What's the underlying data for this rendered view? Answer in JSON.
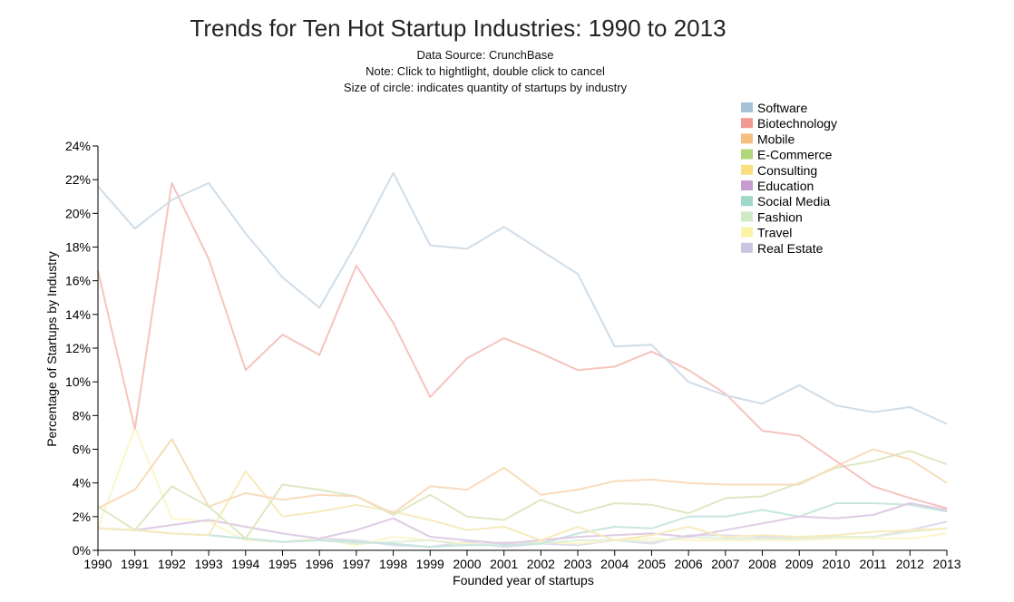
{
  "title": "Trends for Ten Hot Startup Industries: 1990 to 2013",
  "subtitles": {
    "source": "Data Source: CrunchBase",
    "note": "Note: Click to hightlight, double click to cancel",
    "size": "Size of circle: indicates quantity of startups by industry"
  },
  "chart_data": {
    "type": "line",
    "title": "Trends for Ten Hot Startup Industries: 1990 to 2013",
    "xlabel": "Founded year of startups",
    "ylabel": "Percentage of Startups by Industry",
    "ylim": [
      0,
      24
    ],
    "yticks": [
      0,
      2,
      4,
      6,
      8,
      10,
      12,
      14,
      16,
      18,
      20,
      22,
      24
    ],
    "ytick_suffix": "%",
    "grid": false,
    "legend_position": "top-right",
    "x": [
      1990,
      1991,
      1992,
      1993,
      1994,
      1995,
      1996,
      1997,
      1998,
      1999,
      2000,
      2001,
      2002,
      2003,
      2004,
      2005,
      2006,
      2007,
      2008,
      2009,
      2010,
      2011,
      2012,
      2013
    ],
    "series": [
      {
        "name": "Software",
        "color": "#a6c2d8",
        "line_color": "#d0dde8",
        "values": [
          21.6,
          19.1,
          20.8,
          21.8,
          18.8,
          16.2,
          14.4,
          18.2,
          22.4,
          18.1,
          17.9,
          19.2,
          17.8,
          16.4,
          12.1,
          12.2,
          10.0,
          9.2,
          8.7,
          9.8,
          8.6,
          8.2,
          8.5,
          7.5
        ]
      },
      {
        "name": "Biotechnology",
        "color": "#f29a91",
        "line_color": "#f5c4be",
        "values": [
          16.6,
          7.2,
          21.8,
          17.3,
          10.7,
          12.8,
          11.6,
          16.9,
          13.5,
          9.1,
          11.4,
          12.6,
          11.7,
          10.7,
          10.9,
          11.8,
          10.7,
          9.3,
          7.1,
          6.8,
          5.3,
          3.8,
          3.1,
          2.5
        ]
      },
      {
        "name": "Mobile",
        "color": "#f6bf7f",
        "line_color": "#f8dcbc",
        "values": [
          2.5,
          3.6,
          6.6,
          2.6,
          3.4,
          3.0,
          3.3,
          3.2,
          2.2,
          3.8,
          3.6,
          4.9,
          3.3,
          3.6,
          4.1,
          4.2,
          4.0,
          3.9,
          3.9,
          3.9,
          5.0,
          6.0,
          5.4,
          4.0
        ]
      },
      {
        "name": "E-Commerce",
        "color": "#b2d67a",
        "line_color": "#dde9c3",
        "values": [
          2.6,
          1.2,
          3.8,
          2.6,
          0.7,
          3.9,
          3.6,
          3.2,
          2.1,
          3.3,
          2.0,
          1.8,
          3.0,
          2.2,
          2.8,
          2.7,
          2.2,
          3.1,
          3.2,
          4.0,
          4.9,
          5.3,
          5.9,
          5.1
        ]
      },
      {
        "name": "Consulting",
        "color": "#f9df80",
        "line_color": "#f7ebbd",
        "values": [
          1.3,
          1.2,
          1.0,
          0.9,
          4.7,
          2.0,
          2.3,
          2.7,
          2.3,
          1.8,
          1.2,
          1.4,
          0.6,
          1.4,
          0.6,
          0.9,
          1.4,
          0.8,
          0.9,
          0.8,
          0.9,
          1.1,
          1.2,
          1.3
        ]
      },
      {
        "name": "Education",
        "color": "#c59dd2",
        "line_color": "#dfcbe6",
        "values": [
          1.3,
          1.2,
          1.5,
          1.8,
          1.4,
          1.0,
          0.7,
          1.2,
          1.9,
          0.8,
          0.6,
          0.4,
          0.6,
          0.8,
          0.9,
          1.0,
          0.8,
          1.2,
          1.6,
          2.0,
          1.9,
          2.1,
          2.8,
          2.4
        ]
      },
      {
        "name": "Social Media",
        "color": "#9fd8c8",
        "line_color": "#c8e6df",
        "values": [
          1.3,
          1.2,
          1.0,
          0.9,
          0.7,
          0.5,
          0.6,
          0.5,
          0.4,
          0.2,
          0.3,
          0.3,
          0.4,
          1.0,
          1.4,
          1.3,
          2.0,
          2.0,
          2.4,
          2.0,
          2.8,
          2.8,
          2.7,
          2.3
        ]
      },
      {
        "name": "Fashion",
        "color": "#cfe8c6",
        "line_color": "#e2efdc",
        "values": [
          1.3,
          1.2,
          1.0,
          0.9,
          0.7,
          0.5,
          0.6,
          0.4,
          0.5,
          0.6,
          0.3,
          0.5,
          0.4,
          0.6,
          0.6,
          0.5,
          0.8,
          0.7,
          0.7,
          0.7,
          0.8,
          0.8,
          1.1,
          1.3
        ]
      },
      {
        "name": "Travel",
        "color": "#fbf4a8",
        "line_color": "#fbf6cc",
        "values": [
          1.3,
          7.3,
          1.9,
          1.7,
          0.6,
          0.5,
          0.7,
          0.3,
          0.8,
          0.6,
          0.4,
          0.3,
          0.5,
          0.4,
          0.6,
          0.7,
          0.6,
          0.6,
          0.6,
          0.6,
          0.7,
          0.7,
          0.7,
          1.0
        ]
      },
      {
        "name": "Real Estate",
        "color": "#cbc4e0",
        "line_color": "#e0dbed",
        "values": [
          1.3,
          1.2,
          1.0,
          0.9,
          0.7,
          0.5,
          0.7,
          0.6,
          0.3,
          0.2,
          0.5,
          0.2,
          0.4,
          0.3,
          0.6,
          0.4,
          0.9,
          0.9,
          0.8,
          0.8,
          0.7,
          0.8,
          1.2,
          1.7
        ]
      }
    ]
  }
}
